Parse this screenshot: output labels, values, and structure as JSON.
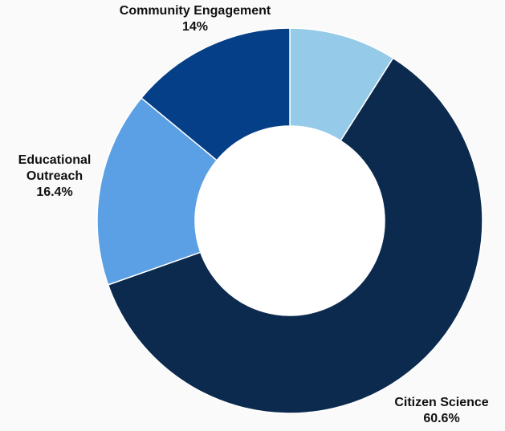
{
  "chart_data": {
    "type": "pie",
    "categories": [
      null,
      "Citizen Science",
      "Educational Outreach",
      "Community Engagement"
    ],
    "values": [
      9,
      60.6,
      16.4,
      14
    ],
    "value_labels": [
      null,
      "60.6%",
      "16.4%",
      "14%"
    ],
    "colors": [
      "#95cbe8",
      "#0c2a4e",
      "#5b9fe4",
      "#053f87"
    ],
    "donut": true
  }
}
